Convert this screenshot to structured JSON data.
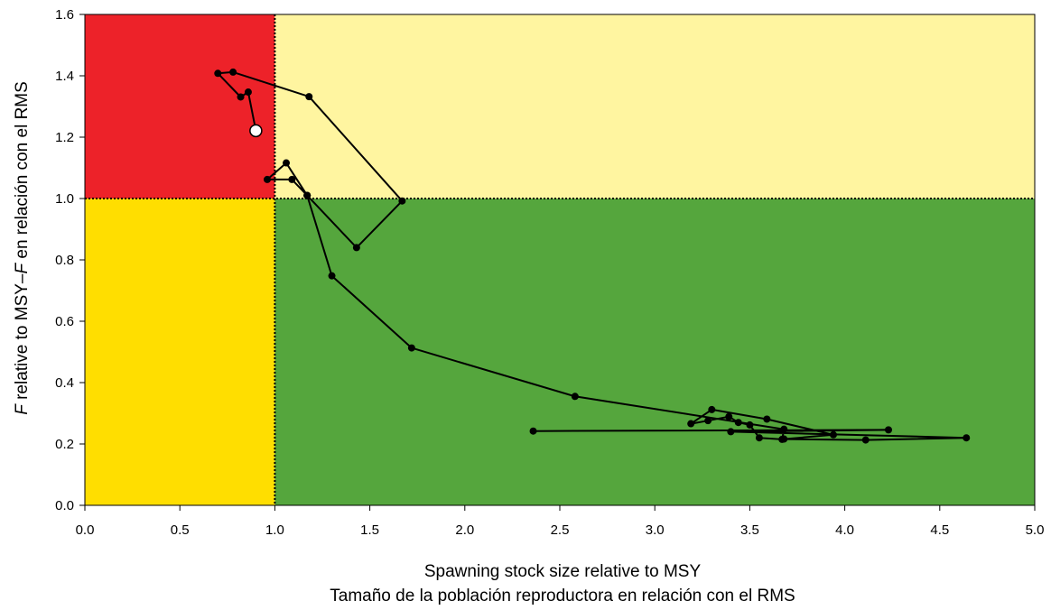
{
  "colors": {
    "overfished_overfishing": "#ED2229",
    "overfishing_only": "#FFF5A0",
    "overfished_only": "#FFDE00",
    "healthy": "#55A63D",
    "trajectory": "#000000",
    "last_point_fill": "#FFFFFF"
  },
  "chart_data": {
    "type": "scatter",
    "title": "",
    "xlabel": "Spawning stock size relative to MSY",
    "xlabel2": "Tamaño de la población reproductora en relación con el RMS",
    "ylabel_italic": "F",
    "ylabel_mid": " relative to MSY–",
    "ylabel_italic2": "F",
    "ylabel_end": " en relación con el RMS",
    "xlim": [
      0,
      5
    ],
    "ylim": [
      0,
      1.6
    ],
    "x_ticks": [
      "0.0",
      "0.5",
      "1.0",
      "1.5",
      "2.0",
      "2.5",
      "3.0",
      "3.5",
      "4.0",
      "4.5",
      "5.0"
    ],
    "y_ticks": [
      "0.0",
      "0.2",
      "0.4",
      "0.6",
      "0.8",
      "1.0",
      "1.2",
      "1.4",
      "1.6"
    ],
    "reference_x": 1.0,
    "reference_y": 1.0,
    "grid": false,
    "legend": "none",
    "series": [
      {
        "x": [
          2.36,
          4.23,
          3.4,
          4.64,
          4.11,
          3.68,
          3.94,
          3.59,
          3.3,
          3.19,
          3.28,
          3.39,
          3.44,
          3.5,
          3.55,
          3.67,
          3.68,
          2.58,
          1.72,
          1.3,
          1.17,
          1.43,
          1.67,
          1.18,
          0.78,
          0.7,
          0.82,
          0.86,
          0.9
        ],
        "y": [
          0.242,
          0.246,
          0.24,
          0.22,
          0.213,
          0.216,
          0.23,
          0.281,
          0.312,
          0.266,
          0.276,
          0.289,
          0.27,
          0.262,
          0.22,
          0.215,
          0.248,
          0.355,
          0.513,
          0.748,
          1.01,
          0.84,
          0.992,
          1.332,
          1.412,
          1.408,
          1.331,
          1.347,
          1.221
        ]
      },
      {
        "x": [
          1.17,
          1.09,
          0.96,
          1.06,
          1.17
        ],
        "y": [
          1.01,
          1.062,
          1.062,
          1.116,
          1.01
        ]
      }
    ],
    "last_point": {
      "x": 0.9,
      "y": 1.221
    }
  }
}
